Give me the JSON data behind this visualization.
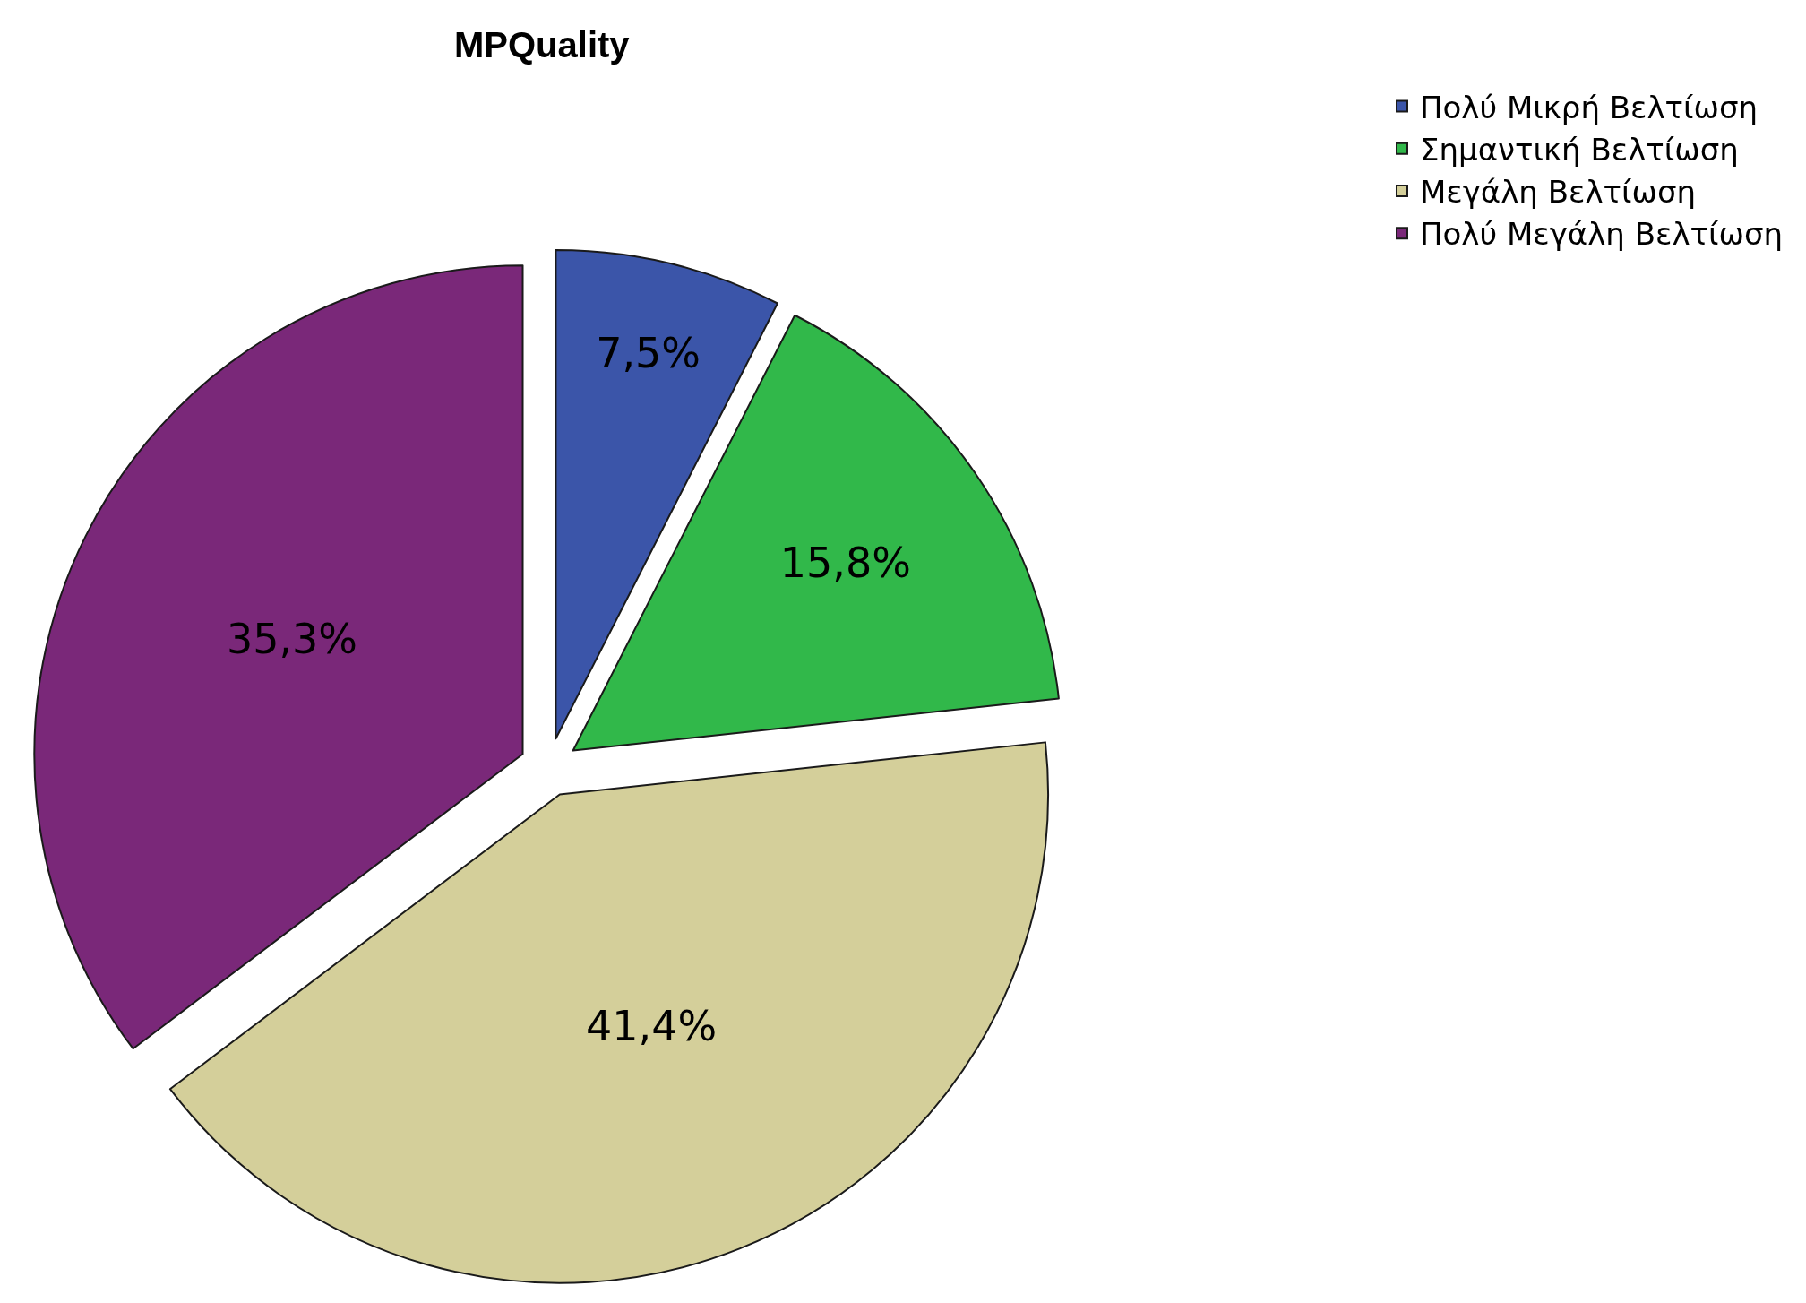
{
  "chart_data": {
    "type": "pie",
    "title": "MPQuality",
    "categories": [
      "Πολύ Μικρή Βελτίωση",
      "Σημαντική Βελτίωση",
      "Μεγάλη Βελτίωση",
      "Πολύ Μεγάλη Βελτίωση"
    ],
    "values": [
      7.5,
      15.8,
      41.4,
      35.3
    ],
    "value_labels": [
      "7,5%",
      "15,8%",
      "41,4%",
      "35,3%"
    ],
    "colors": [
      "#3b55a9",
      "#31b84a",
      "#d4cf9a",
      "#7a2879"
    ],
    "legend": "top right"
  }
}
